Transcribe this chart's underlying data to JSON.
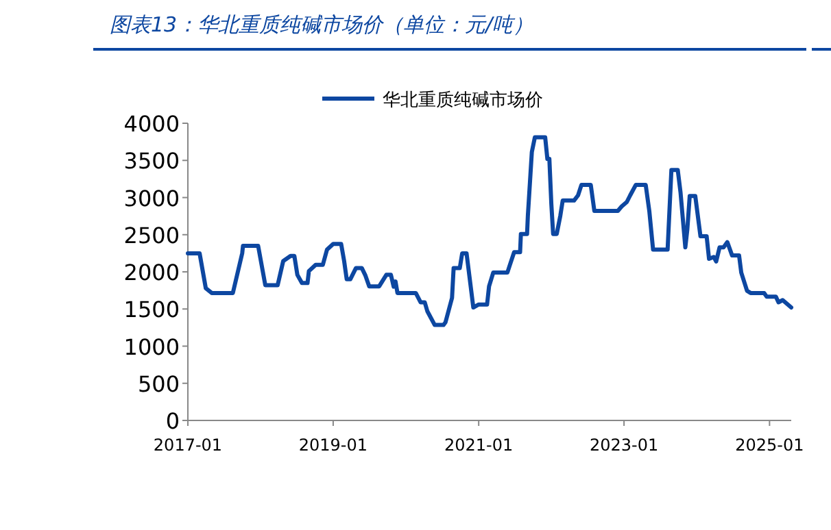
{
  "chart_data": {
    "type": "line",
    "title": "图表13：华北重质纯碱市场价（单位：元/吨）",
    "legend": "top",
    "grid": false,
    "marker": "none",
    "line_style": "solid",
    "xlim": [
      "2017-01-01",
      "2025-04-20"
    ],
    "xticks": [
      "2017-01",
      "2019-01",
      "2021-01",
      "2023-01",
      "2025-01"
    ],
    "ylim": [
      0,
      4000
    ],
    "yticks": [
      0,
      500,
      1000,
      1500,
      2000,
      2500,
      3000,
      3500,
      4000
    ],
    "x": [
      "2017-01-01",
      "2017-03-01",
      "2017-04-01",
      "2017-05-01",
      "2017-08-15",
      "2017-10-01",
      "2017-10-05",
      "2017-12-20",
      "2018-01-25",
      "2018-03-28",
      "2018-04-25",
      "2018-06-01",
      "2018-06-20",
      "2018-07-05",
      "2018-07-28",
      "2018-08-25",
      "2018-09-01",
      "2018-10-05",
      "2018-11-10",
      "2018-12-01",
      "2019-01-01",
      "2019-02-10",
      "2019-02-25",
      "2019-03-10",
      "2019-03-28",
      "2019-04-25",
      "2019-05-25",
      "2019-06-12",
      "2019-07-01",
      "2019-08-20",
      "2019-09-25",
      "2019-10-18",
      "2019-11-01",
      "2019-11-10",
      "2019-11-20",
      "2020-02-20",
      "2020-03-15",
      "2020-04-05",
      "2020-04-18",
      "2020-05-25",
      "2020-07-08",
      "2020-07-18",
      "2020-08-20",
      "2020-08-28",
      "2020-09-28",
      "2020-10-10",
      "2020-11-01",
      "2020-12-05",
      "2021-01-01",
      "2021-02-12",
      "2021-02-22",
      "2021-03-15",
      "2021-05-25",
      "2021-06-05",
      "2021-06-28",
      "2021-07-28",
      "2021-08-01",
      "2021-09-01",
      "2021-09-05",
      "2021-09-25",
      "2021-10-10",
      "2021-12-01",
      "2021-12-12",
      "2021-12-22",
      "2022-01-01",
      "2022-01-10",
      "2022-01-28",
      "2022-02-15",
      "2022-02-27",
      "2022-04-25",
      "2022-05-15",
      "2022-06-01",
      "2022-07-18",
      "2022-08-05",
      "2022-12-01",
      "2022-12-20",
      "2023-01-15",
      "2023-02-01",
      "2023-03-01",
      "2023-04-20",
      "2023-05-08",
      "2023-05-27",
      "2023-08-08",
      "2023-08-27",
      "2023-09-28",
      "2023-10-12",
      "2023-11-05",
      "2023-11-15",
      "2023-11-27",
      "2023-12-25",
      "2024-01-20",
      "2024-02-20",
      "2024-03-03",
      "2024-03-27",
      "2024-04-08",
      "2024-04-25",
      "2024-05-15",
      "2024-06-03",
      "2024-06-27",
      "2024-08-01",
      "2024-08-12",
      "2024-09-10",
      "2024-09-28",
      "2024-12-05",
      "2024-12-18",
      "2025-02-02",
      "2025-02-15",
      "2025-03-08",
      "2025-04-20"
    ],
    "series": [
      {
        "name": "华北重质纯碱市场价",
        "color": "#0d47a1",
        "values": [
          2250,
          2250,
          1780,
          1715,
          1715,
          2250,
          2350,
          2350,
          1820,
          1820,
          2145,
          2215,
          2215,
          1960,
          1850,
          1850,
          2010,
          2095,
          2095,
          2300,
          2375,
          2375,
          2145,
          1900,
          1900,
          2050,
          2050,
          1950,
          1805,
          1805,
          1960,
          1960,
          1800,
          1870,
          1715,
          1715,
          1590,
          1590,
          1470,
          1285,
          1285,
          1320,
          1650,
          2050,
          2050,
          2250,
          2250,
          1520,
          1560,
          1560,
          1805,
          1990,
          1990,
          2080,
          2265,
          2265,
          2510,
          2510,
          2755,
          3615,
          3810,
          3810,
          3520,
          3520,
          2910,
          2510,
          2510,
          2755,
          2960,
          2960,
          3030,
          3170,
          3170,
          2820,
          2820,
          2880,
          2940,
          3030,
          3170,
          3170,
          2820,
          2300,
          2300,
          3370,
          3370,
          3065,
          2330,
          2570,
          3020,
          3020,
          2480,
          2480,
          2175,
          2200,
          2140,
          2330,
          2330,
          2400,
          2220,
          2220,
          1990,
          1745,
          1715,
          1715,
          1665,
          1665,
          1590,
          1620,
          1520
        ]
      }
    ]
  }
}
